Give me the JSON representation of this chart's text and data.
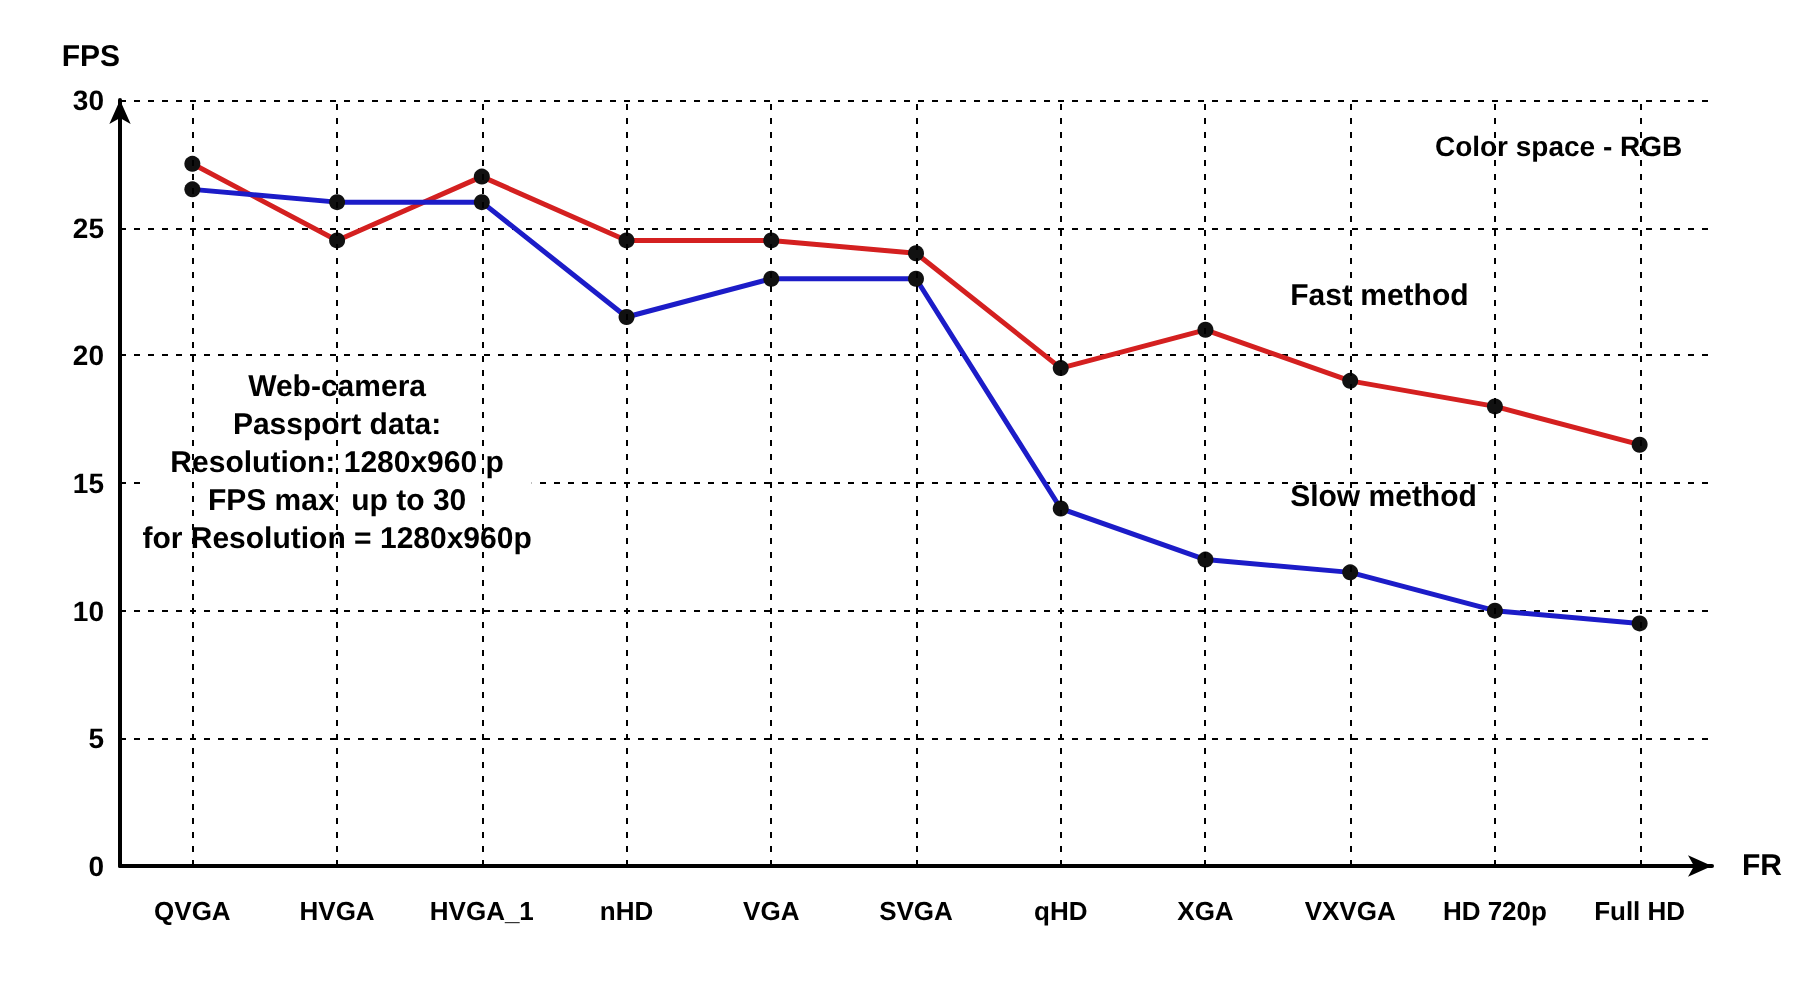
{
  "chart_data": {
    "type": "line",
    "xlabel": "FR",
    "ylabel": "FPS",
    "categories": [
      "QVGA",
      "HVGA",
      "HVGA_1",
      "nHD",
      "VGA",
      "SVGA",
      "qHD",
      "XGA",
      "VXVGA",
      "HD 720p",
      "Full HD"
    ],
    "series": [
      {
        "name": "Fast method",
        "color": "#d42020",
        "values": [
          27.5,
          24.5,
          27,
          24.5,
          24.5,
          24,
          19.5,
          21,
          19,
          18,
          16.5
        ]
      },
      {
        "name": "Slow method",
        "color": "#1c1cc8",
        "values": [
          26.5,
          26,
          26,
          21.5,
          23,
          23,
          14,
          12,
          11.5,
          10,
          9.5
        ]
      }
    ],
    "ylim": [
      0,
      30
    ],
    "yticks": [
      0,
      5,
      10,
      15,
      20,
      25,
      30
    ],
    "grid": true,
    "legend": false,
    "marker": "circle",
    "line_style": "solid",
    "annotations": [
      "Color space - RGB",
      "Web-camera\nPassport data:\nResolution: 1280x960 p\nFPS max  up to 30\nfor Resolution = 1280x960p"
    ]
  }
}
